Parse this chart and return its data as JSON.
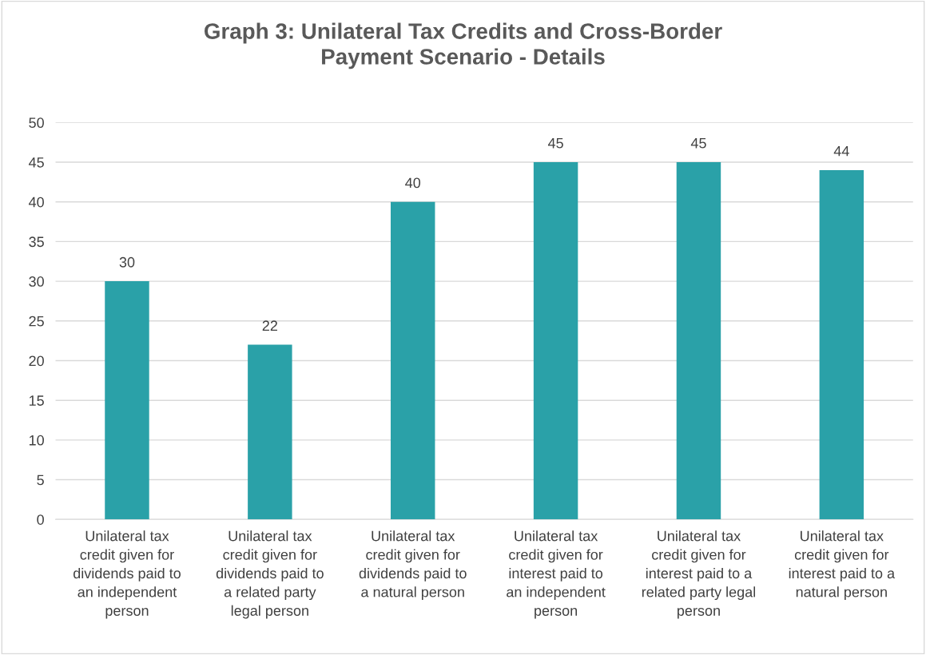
{
  "chart_data": {
    "type": "bar",
    "title": "Graph 3: Unilateral Tax Credits and Cross-Border\nPayment Scenario - Details",
    "categories": [
      "Unilateral tax\ncredit given for\ndividends paid to\nan independent\nperson",
      "Unilateral tax\ncredit given for\ndividends paid to\na related party\nlegal person",
      "Unilateral tax\ncredit given for\ndividends paid to\na natural person",
      "Unilateral tax\ncredit given for\ninterest paid to\nan independent\nperson",
      "Unilateral tax\ncredit given for\ninterest paid to a\nrelated party legal\nperson",
      "Unilateral tax\ncredit given for\ninterest paid to a\nnatural person"
    ],
    "values": [
      30,
      22,
      40,
      45,
      45,
      44
    ],
    "color": "#2aa1a8",
    "ylim": [
      0,
      50
    ],
    "yticks": [
      0,
      5,
      10,
      15,
      20,
      25,
      30,
      35,
      40,
      45,
      50
    ],
    "grid": "y",
    "data_labels": true
  }
}
